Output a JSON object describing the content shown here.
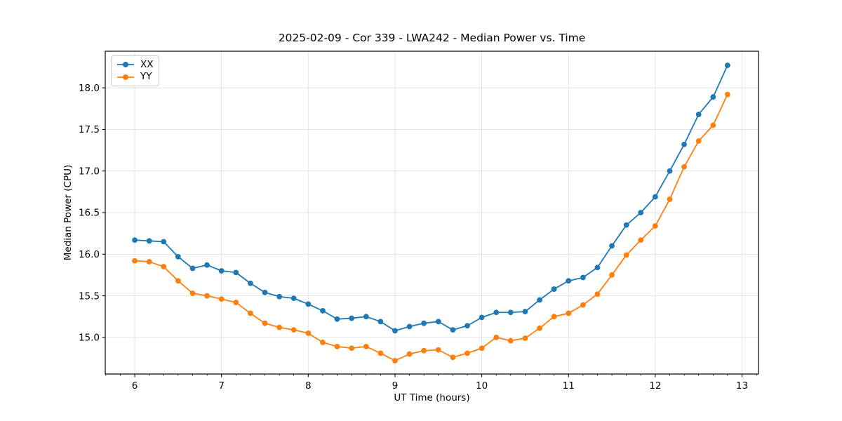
{
  "chart_data": {
    "type": "line",
    "title": "2025-02-09 - Cor 339 - LWA242 - Median Power vs. Time",
    "xlabel": "UT Time (hours)",
    "ylabel": "Median Power (CPU)",
    "xlim": [
      5.66,
      13.19
    ],
    "ylim": [
      14.56,
      18.44
    ],
    "grid": true,
    "grid_color": "#e0e0e0",
    "spine_color": "#000000",
    "legend_position": "upper left",
    "x_ticks": [
      6,
      7,
      8,
      9,
      10,
      11,
      12,
      13
    ],
    "x_tick_labels": [
      "6",
      "7",
      "8",
      "9",
      "10",
      "11",
      "12",
      "13"
    ],
    "x_minor_tick_step": 0.16667,
    "y_ticks": [
      15.0,
      15.5,
      16.0,
      16.5,
      17.0,
      17.5,
      18.0
    ],
    "y_tick_labels": [
      "15.0",
      "15.5",
      "16.0",
      "16.5",
      "17.0",
      "17.5",
      "18.0"
    ],
    "x": [
      6.0,
      6.167,
      6.333,
      6.5,
      6.667,
      6.833,
      7.0,
      7.167,
      7.333,
      7.5,
      7.667,
      7.833,
      8.0,
      8.167,
      8.333,
      8.5,
      8.667,
      8.833,
      9.0,
      9.167,
      9.333,
      9.5,
      9.667,
      9.833,
      10.0,
      10.167,
      10.333,
      10.5,
      10.667,
      10.833,
      11.0,
      11.167,
      11.333,
      11.5,
      11.667,
      11.833,
      12.0,
      12.167,
      12.333,
      12.5,
      12.667,
      12.833
    ],
    "series": [
      {
        "name": "XX",
        "color": "#1f77b4",
        "values": [
          16.17,
          16.16,
          16.15,
          15.97,
          15.83,
          15.87,
          15.8,
          15.78,
          15.65,
          15.54,
          15.49,
          15.47,
          15.4,
          15.32,
          15.22,
          15.23,
          15.25,
          15.19,
          15.08,
          15.13,
          15.17,
          15.19,
          15.09,
          15.14,
          15.24,
          15.3,
          15.3,
          15.31,
          15.45,
          15.58,
          15.68,
          15.72,
          15.84,
          16.1,
          16.35,
          16.5,
          16.69,
          17.0,
          17.32,
          17.68,
          17.89,
          18.27
        ]
      },
      {
        "name": "YY",
        "color": "#ff7f0e",
        "values": [
          15.92,
          15.91,
          15.85,
          15.68,
          15.53,
          15.5,
          15.46,
          15.42,
          15.29,
          15.17,
          15.12,
          15.09,
          15.05,
          14.94,
          14.89,
          14.87,
          14.89,
          14.81,
          14.72,
          14.8,
          14.84,
          14.85,
          14.76,
          14.81,
          14.87,
          15.0,
          14.96,
          14.99,
          15.11,
          15.25,
          15.29,
          15.39,
          15.52,
          15.75,
          15.99,
          16.17,
          16.34,
          16.66,
          17.05,
          17.36,
          17.55,
          17.92
        ]
      }
    ],
    "marker": "circle",
    "marker_radius": 3.9,
    "line_width": 1.8
  }
}
